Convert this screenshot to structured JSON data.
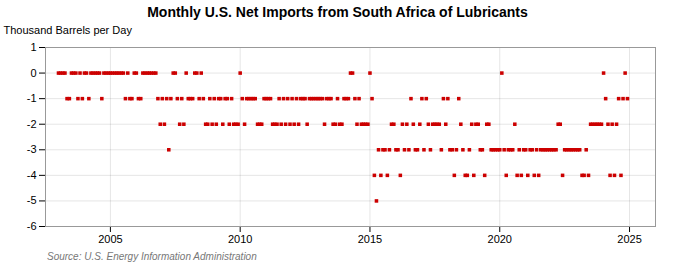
{
  "chart_data": {
    "type": "scatter",
    "title": "Monthly U.S. Net Imports from South Africa of Lubricants",
    "ylabel": "Thousand Barrels per Day",
    "source": "Source: U.S. Energy Information Administration",
    "color": "#cc0000",
    "marker": "square",
    "grid": true,
    "xlim": [
      2002.5,
      2026.0
    ],
    "xticks": [
      2005,
      2010,
      2015,
      2020,
      2025
    ],
    "ylim": [
      -6,
      1
    ],
    "yticks": [
      1,
      0,
      -1,
      -2,
      -3,
      -4,
      -5,
      -6
    ],
    "x": [
      2003.0,
      2003.08,
      2003.17,
      2003.25,
      2003.33,
      2003.42,
      2003.5,
      2003.58,
      2003.67,
      2003.75,
      2003.83,
      2003.92,
      2004.0,
      2004.08,
      2004.17,
      2004.25,
      2004.33,
      2004.42,
      2004.5,
      2004.58,
      2004.67,
      2004.75,
      2004.83,
      2004.92,
      2005.0,
      2005.08,
      2005.17,
      2005.25,
      2005.33,
      2005.42,
      2005.5,
      2005.58,
      2005.67,
      2005.75,
      2005.83,
      2005.92,
      2006.0,
      2006.08,
      2006.17,
      2006.25,
      2006.33,
      2006.42,
      2006.5,
      2006.58,
      2006.67,
      2006.75,
      2006.83,
      2006.92,
      2007.0,
      2007.08,
      2007.17,
      2007.25,
      2007.33,
      2007.42,
      2007.5,
      2007.58,
      2007.67,
      2007.75,
      2007.83,
      2007.92,
      2008.0,
      2008.08,
      2008.17,
      2008.25,
      2008.33,
      2008.42,
      2008.5,
      2008.58,
      2008.67,
      2008.75,
      2008.83,
      2008.92,
      2009.0,
      2009.08,
      2009.17,
      2009.25,
      2009.33,
      2009.42,
      2009.5,
      2009.58,
      2009.67,
      2009.75,
      2009.83,
      2009.92,
      2010.0,
      2010.08,
      2010.17,
      2010.25,
      2010.33,
      2010.42,
      2010.5,
      2010.58,
      2010.67,
      2010.75,
      2010.83,
      2010.92,
      2011.0,
      2011.08,
      2011.17,
      2011.25,
      2011.33,
      2011.42,
      2011.5,
      2011.58,
      2011.67,
      2011.75,
      2011.83,
      2011.92,
      2012.0,
      2012.08,
      2012.17,
      2012.25,
      2012.33,
      2012.42,
      2012.5,
      2012.58,
      2012.67,
      2012.75,
      2012.83,
      2012.92,
      2013.0,
      2013.08,
      2013.17,
      2013.25,
      2013.33,
      2013.42,
      2013.5,
      2013.58,
      2013.67,
      2013.75,
      2013.83,
      2013.92,
      2014.0,
      2014.08,
      2014.17,
      2014.25,
      2014.33,
      2014.42,
      2014.5,
      2014.58,
      2014.67,
      2014.75,
      2014.83,
      2014.92,
      2015.0,
      2015.08,
      2015.17,
      2015.25,
      2015.33,
      2015.42,
      2015.5,
      2015.58,
      2015.67,
      2015.75,
      2015.83,
      2015.92,
      2016.0,
      2016.08,
      2016.17,
      2016.25,
      2016.33,
      2016.42,
      2016.5,
      2016.58,
      2016.67,
      2016.75,
      2016.83,
      2016.92,
      2017.0,
      2017.08,
      2017.17,
      2017.25,
      2017.33,
      2017.42,
      2017.5,
      2017.58,
      2017.67,
      2017.75,
      2017.83,
      2017.92,
      2018.0,
      2018.08,
      2018.17,
      2018.25,
      2018.33,
      2018.42,
      2018.5,
      2018.58,
      2018.67,
      2018.75,
      2018.83,
      2018.92,
      2019.0,
      2019.08,
      2019.17,
      2019.25,
      2019.33,
      2019.42,
      2019.5,
      2019.58,
      2019.67,
      2019.75,
      2019.83,
      2019.92,
      2020.0,
      2020.08,
      2020.17,
      2020.25,
      2020.33,
      2020.42,
      2020.5,
      2020.58,
      2020.67,
      2020.75,
      2020.83,
      2020.92,
      2021.0,
      2021.08,
      2021.17,
      2021.25,
      2021.33,
      2021.42,
      2021.5,
      2021.58,
      2021.67,
      2021.75,
      2021.83,
      2021.92,
      2022.0,
      2022.08,
      2022.17,
      2022.25,
      2022.33,
      2022.42,
      2022.5,
      2022.58,
      2022.67,
      2022.75,
      2022.83,
      2022.92,
      2023.0,
      2023.08,
      2023.17,
      2023.25,
      2023.33,
      2023.42,
      2023.5,
      2023.58,
      2023.67,
      2023.75,
      2023.83,
      2023.92,
      2024.0,
      2024.08,
      2024.17,
      2024.25,
      2024.33,
      2024.42,
      2024.5,
      2024.58,
      2024.67,
      2024.75,
      2024.83,
      2024.92
    ],
    "values": [
      0,
      0,
      0,
      0,
      -1,
      -1,
      0,
      0,
      0,
      -1,
      0,
      -1,
      0,
      0,
      -1,
      0,
      0,
      0,
      0,
      0,
      -1,
      0,
      0,
      0,
      0,
      0,
      0,
      0,
      0,
      0,
      0,
      -1,
      0,
      -1,
      -1,
      0,
      0,
      -1,
      -1,
      0,
      0,
      0,
      0,
      0,
      0,
      0,
      -1,
      -2,
      -1,
      -2,
      -1,
      -3,
      -1,
      0,
      0,
      -1,
      -2,
      -1,
      -2,
      0,
      -1,
      -1,
      -1,
      0,
      0,
      -1,
      0,
      -1,
      -2,
      -2,
      -1,
      -2,
      -1,
      -2,
      -1,
      -1,
      -2,
      -1,
      -1,
      -2,
      -1,
      -2,
      -2,
      -2,
      0,
      -1,
      -2,
      -1,
      -1,
      -1,
      -1,
      -1,
      -2,
      -2,
      -2,
      -1,
      -1,
      -1,
      -1,
      -2,
      -2,
      -2,
      -1,
      -2,
      -1,
      -2,
      -1,
      -2,
      -1,
      -2,
      -1,
      -2,
      -1,
      -1,
      -1,
      -2,
      -1,
      -1,
      -1,
      -1,
      -1,
      -1,
      -1,
      -2,
      -1,
      -1,
      -1,
      -2,
      -2,
      -1,
      -2,
      -2,
      -1,
      -1,
      -1,
      0,
      0,
      -1,
      -2,
      -1,
      -2,
      -2,
      -2,
      -2,
      0,
      -1,
      -4,
      -5,
      -3,
      -4,
      -3,
      -3,
      -4,
      -3,
      -2,
      -2,
      -3,
      -3,
      -4,
      -2,
      -3,
      -2,
      -3,
      -1,
      -2,
      -3,
      -3,
      -2,
      -1,
      -3,
      -1,
      -2,
      -3,
      -2,
      -2,
      -2,
      -2,
      -3,
      -1,
      -2,
      -1,
      -3,
      -3,
      -4,
      -3,
      -1,
      -2,
      -3,
      -4,
      -4,
      -3,
      -2,
      -4,
      -2,
      -2,
      -3,
      -3,
      -4,
      -2,
      -2,
      -3,
      -3,
      -3,
      -3,
      -3,
      0,
      -3,
      -4,
      -3,
      -3,
      -3,
      -2,
      -4,
      -3,
      -4,
      -3,
      -3,
      -4,
      -3,
      -3,
      -4,
      -3,
      -4,
      -3,
      -3,
      -3,
      -3,
      -3,
      -3,
      -3,
      -3,
      -2,
      -2,
      -4,
      -3,
      -3,
      -3,
      -3,
      -3,
      -3,
      -3,
      -3,
      -4,
      -4,
      -3,
      -4,
      -2,
      -2,
      -2,
      -2,
      -2,
      -2,
      0,
      -1,
      -2,
      -4,
      -2,
      -4,
      -2,
      -1,
      -4,
      -1,
      0,
      -1
    ]
  }
}
